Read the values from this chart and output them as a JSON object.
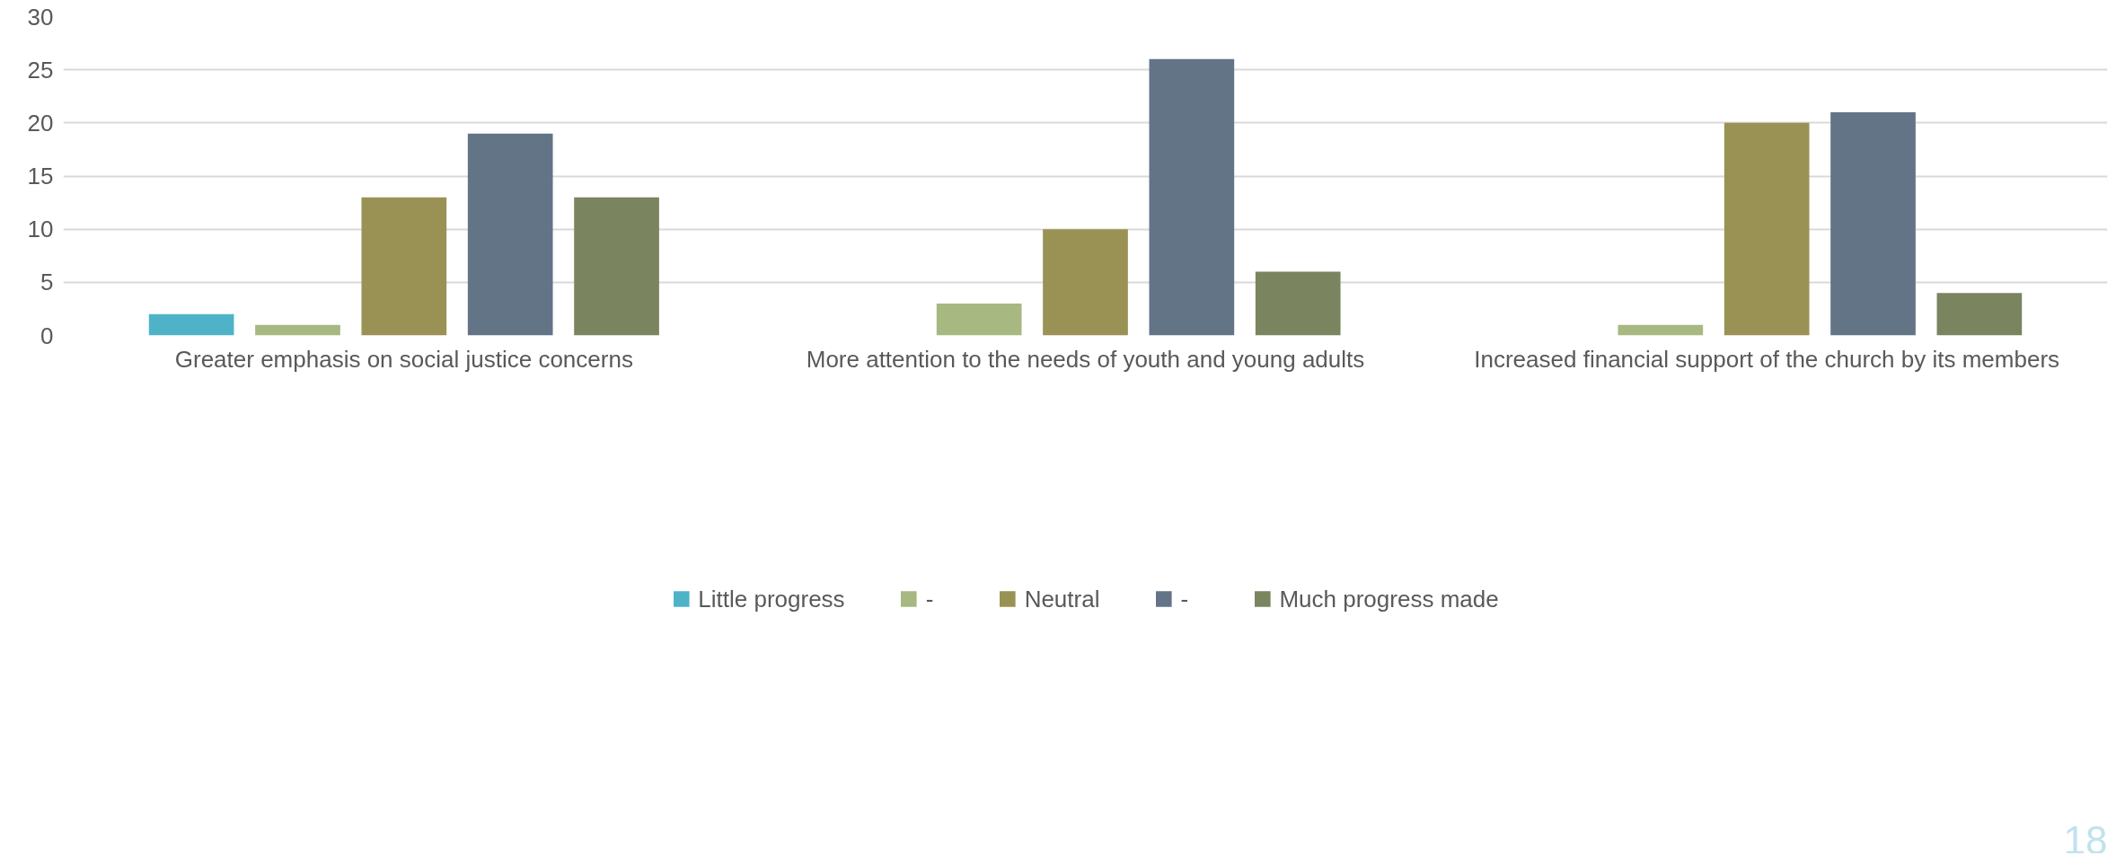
{
  "chart_data": {
    "type": "bar",
    "categories": [
      "Greater emphasis on social justice concerns",
      "More attention to the needs of youth and young adults",
      "Increased financial support of the church by its members"
    ],
    "series": [
      {
        "name": "Little progress",
        "color": "#4fb3c8",
        "values": [
          2,
          0,
          0
        ]
      },
      {
        "name": "-",
        "color": "#a7b880",
        "values": [
          1,
          3,
          1
        ]
      },
      {
        "name": "Neutral",
        "color": "#9a9155",
        "values": [
          13,
          10,
          20
        ]
      },
      {
        "name": "-",
        "color": "#637487",
        "values": [
          19,
          26,
          21
        ]
      },
      {
        "name": "Much progress made",
        "color": "#7a845e",
        "values": [
          13,
          6,
          4
        ]
      }
    ],
    "ylim": [
      0,
      30
    ],
    "yticks": [
      0,
      5,
      10,
      15,
      20,
      25,
      30
    ],
    "grid": "y",
    "legend": "bottom",
    "annotations": [
      "18"
    ]
  }
}
